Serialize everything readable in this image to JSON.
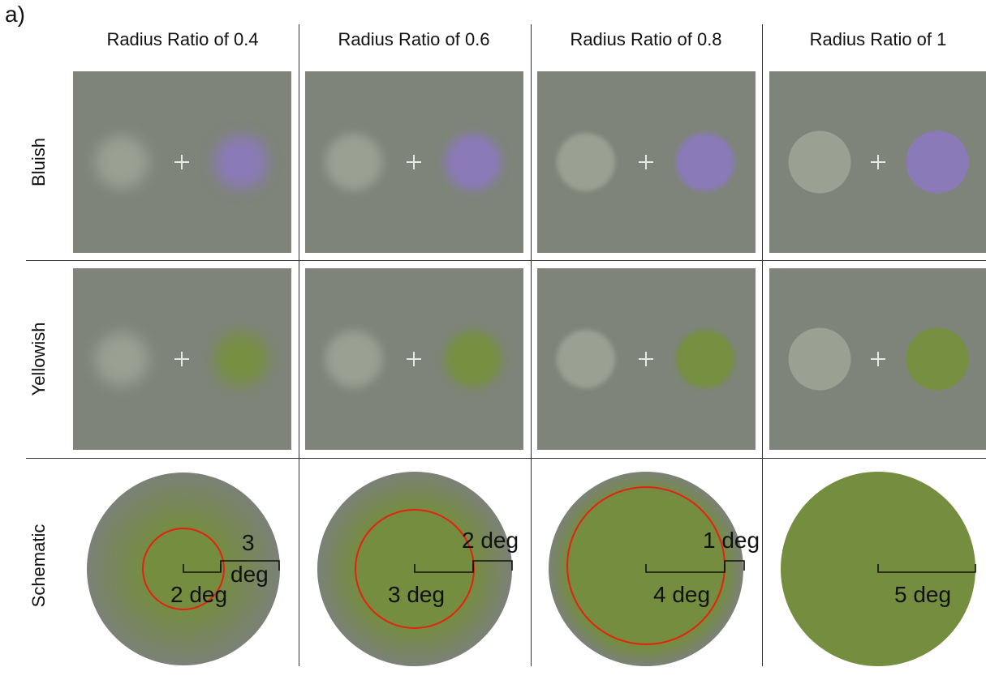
{
  "panel_label": "a)",
  "columns": [
    {
      "title": "Radius Ratio of 0.4",
      "ratio": 0.4
    },
    {
      "title": "Radius Ratio of 0.6",
      "ratio": 0.6
    },
    {
      "title": "Radius Ratio of 0.8",
      "ratio": 0.8
    },
    {
      "title": "Radius Ratio of 1",
      "ratio": 1
    }
  ],
  "rows": {
    "bluish": "Bluish",
    "yellowish": "Yellowish",
    "schematic": "Schematic"
  },
  "colors": {
    "background": "#7e8479",
    "neutral_disc": "#9aa092",
    "bluish_disc": "#8b7ab8",
    "yellowish_disc": "#768f41",
    "schematic_fill": "#748d3f",
    "schematic_edge": "#7b8177",
    "inner_circle": "#e8200f",
    "fixation": "#e6e8e2"
  },
  "schematic": [
    {
      "inner_label": "2 deg",
      "outer_label_line1": "3",
      "outer_label_line2": "deg"
    },
    {
      "inner_label": "3 deg",
      "outer_label": "2 deg"
    },
    {
      "inner_label": "4 deg",
      "outer_label": "1 deg"
    },
    {
      "inner_label": "5 deg"
    }
  ]
}
